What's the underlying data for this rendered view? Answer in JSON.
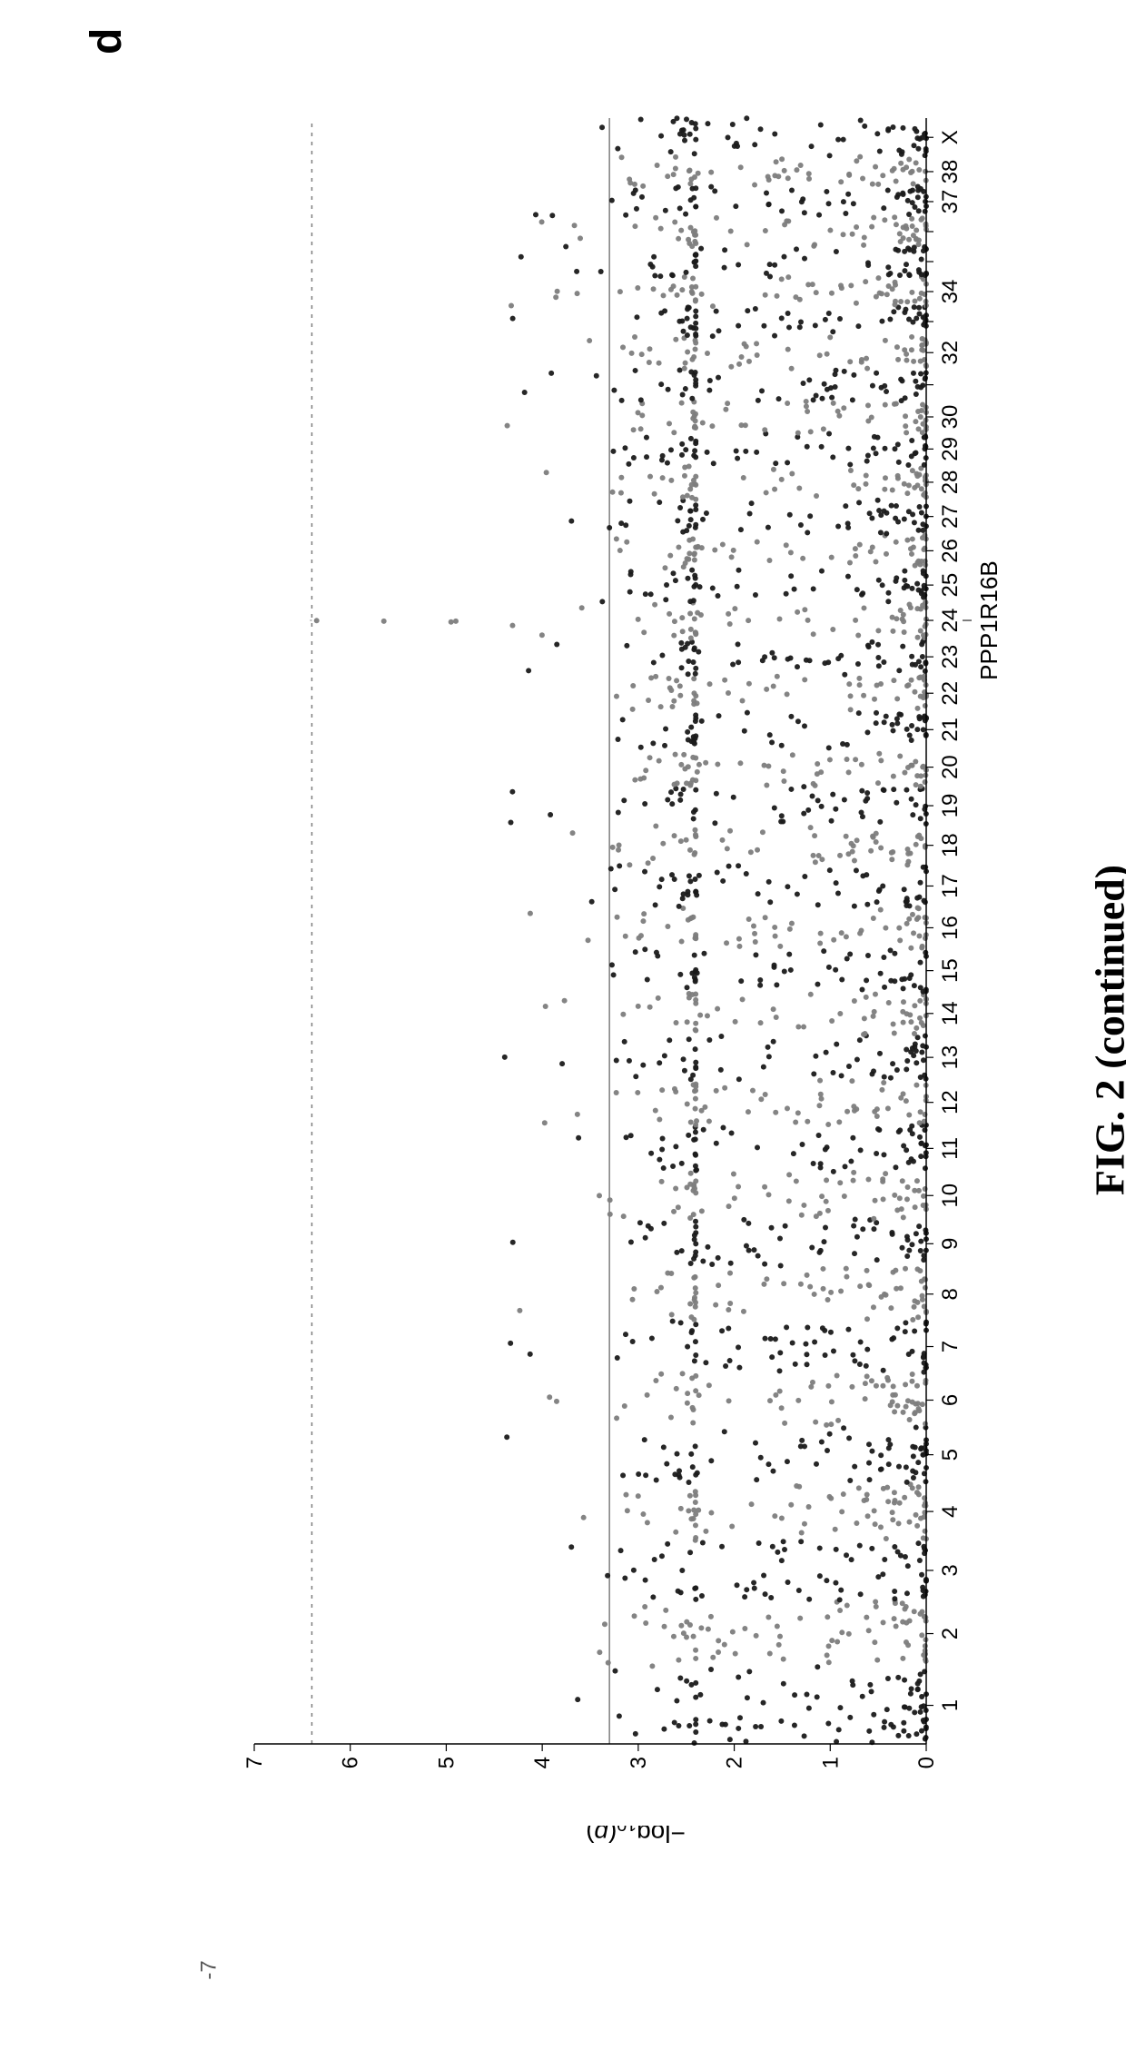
{
  "panel_letter": "d",
  "caption": "FIG. 2 (continued)",
  "ylabel_html": "−log₁₀(p)",
  "ylabel_plain": "-log10(p)",
  "gene_annotation": {
    "label": "PPP1R16B",
    "chromosome_index": 23
  },
  "corner_label": "-7",
  "chart": {
    "type": "manhattan-scatter",
    "background_color": "#ffffff",
    "axis_color": "#000000",
    "tick_color": "#000000",
    "tick_fontsize": 24,
    "ylabel_fontsize": 28,
    "marker_radius": 3.0,
    "series_colors": [
      "#1a1a1a",
      "#7d7d7d"
    ],
    "ylim": [
      0,
      7
    ],
    "ytick_step": 1,
    "yticks": [
      0,
      1,
      2,
      3,
      4,
      5,
      6,
      7
    ],
    "xticks": [
      "1",
      "2",
      "3",
      "4",
      "5",
      "6",
      "7",
      "8",
      "9",
      "10",
      "11",
      "12",
      "13",
      "14",
      "15",
      "16",
      "17",
      "18",
      "19",
      "20",
      "21",
      "22",
      "23",
      "24",
      "25",
      "26",
      "27",
      "28",
      "29",
      "30",
      "31",
      "32",
      "33",
      "34",
      "35",
      "36",
      "37",
      "38",
      "X"
    ],
    "xtick_draw_indices": [
      0,
      1,
      2,
      3,
      4,
      5,
      6,
      7,
      8,
      9,
      10,
      11,
      12,
      13,
      14,
      15,
      16,
      17,
      18,
      19,
      20,
      21,
      22,
      23,
      24,
      25,
      26,
      27,
      28,
      29,
      30,
      31,
      32,
      33,
      34,
      35,
      36,
      37,
      38
    ],
    "xtick_label_every": 1,
    "threshold_lines": [
      {
        "y": 3.3,
        "style": "solid",
        "color": "#7d7d7d",
        "width": 1.5
      },
      {
        "y": 6.4,
        "style": "dotted",
        "color": "#7d7d7d",
        "width": 1.5
      }
    ],
    "significant_points": [
      {
        "chrom_index": 23,
        "y": 6.35,
        "color": "#7d7d7d"
      },
      {
        "chrom_index": 23,
        "y": 5.65,
        "color": "#7d7d7d"
      },
      {
        "chrom_index": 23,
        "y": 4.95,
        "color": "#7d7d7d"
      },
      {
        "chrom_index": 23,
        "y": 4.9,
        "color": "#7d7d7d"
      }
    ],
    "seed": 424242,
    "chrom_widths": [
      1.8,
      1.55,
      1.4,
      1.35,
      1.3,
      1.25,
      1.25,
      1.2,
      1.15,
      1.1,
      1.1,
      1.05,
      1.05,
      1.0,
      1.0,
      1.0,
      0.95,
      0.95,
      0.9,
      0.9,
      0.85,
      0.85,
      0.85,
      0.85,
      0.8,
      0.8,
      0.8,
      0.8,
      0.75,
      0.75,
      0.75,
      0.75,
      0.7,
      0.7,
      0.7,
      0.7,
      0.7,
      0.7,
      0.9
    ],
    "dense_ymax": 2.4,
    "sparse_points_per_chrom": 22,
    "dense_points_per_unit": 160
  }
}
